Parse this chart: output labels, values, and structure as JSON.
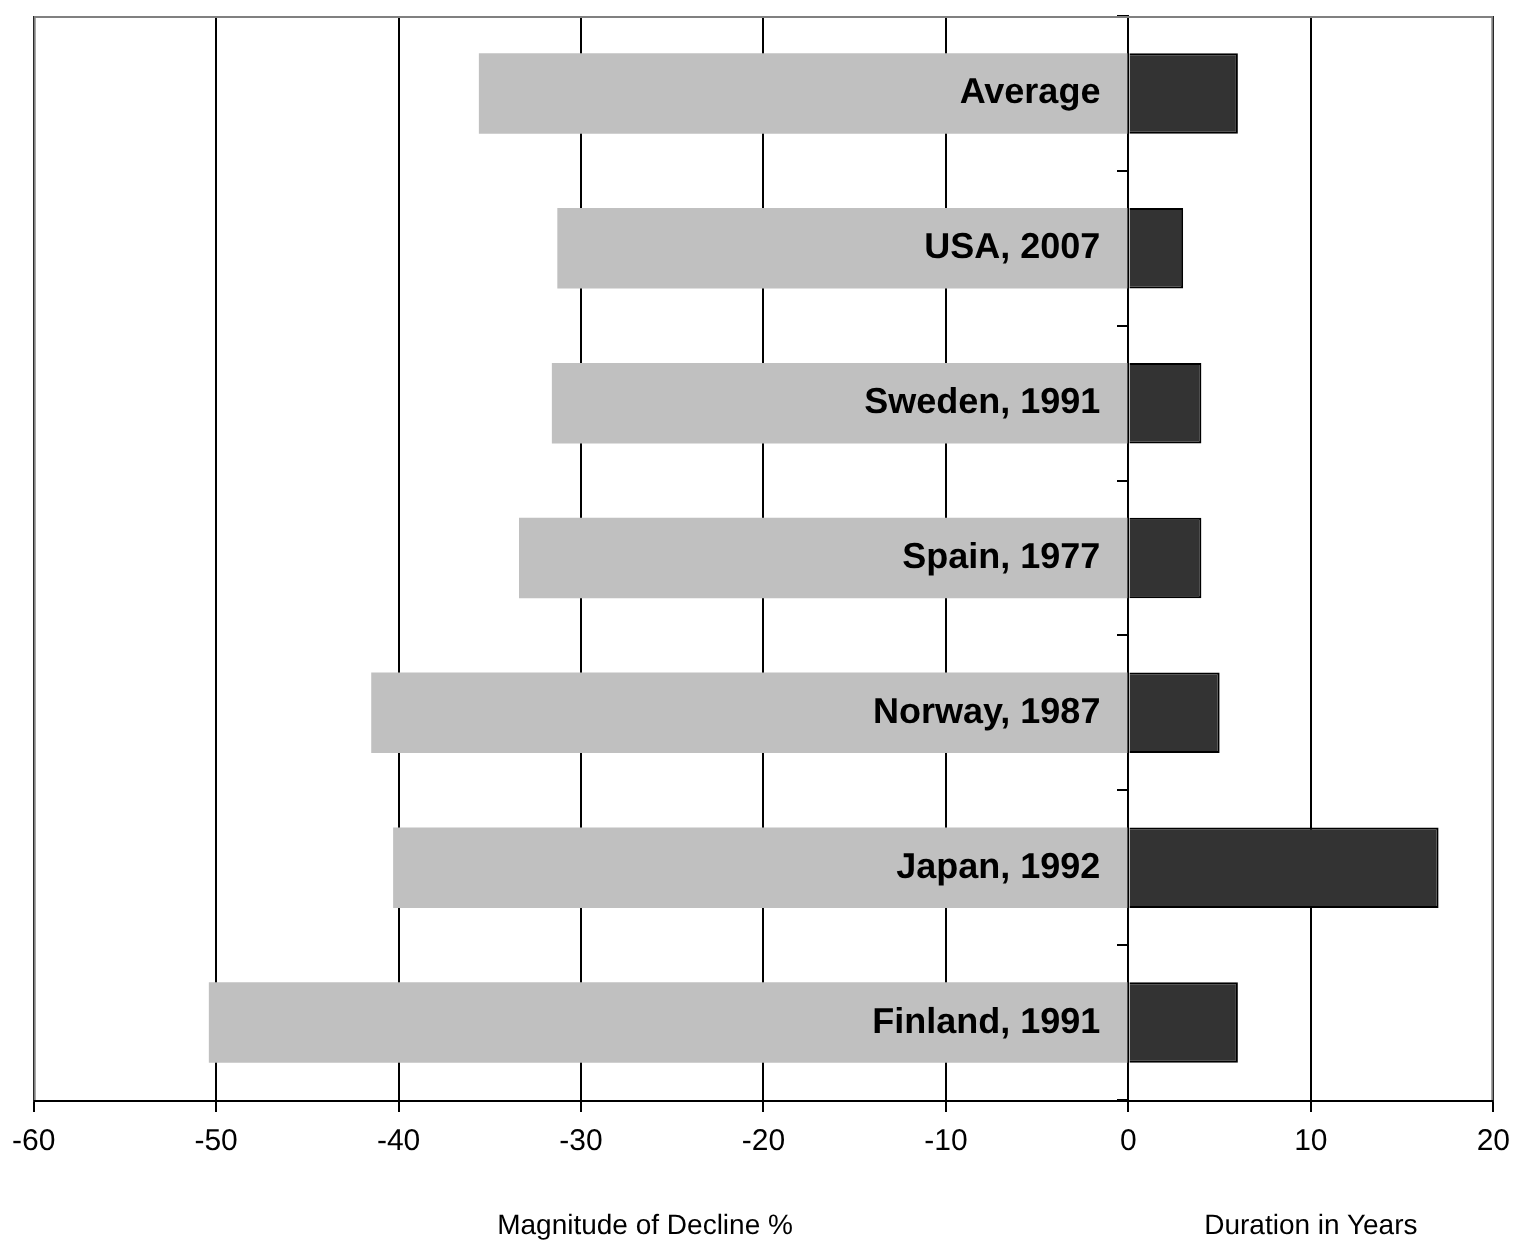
{
  "chart_data": {
    "type": "bar",
    "orientation": "horizontal",
    "stacked": true,
    "categories": [
      "Average",
      "USA, 2007",
      "Sweden, 1991",
      "Spain, 1977",
      "Norway, 1987",
      "Japan, 1992",
      "Finland, 1991"
    ],
    "series": [
      {
        "color": "#c0c0c0",
        "values": [
          -35.6,
          -31.3,
          -31.6,
          -33.4,
          -41.5,
          -40.3,
          -50.4
        ]
      },
      {
        "color": "#333333",
        "values": [
          6,
          3,
          4,
          4,
          5,
          17,
          6
        ]
      }
    ],
    "xlim": [
      -60,
      20
    ],
    "xticks": [
      -60,
      -50,
      -40,
      -30,
      -20,
      -10,
      0,
      10,
      20
    ],
    "xlabel": "Magnitude of Decline %",
    "annotations": [
      "Duration in Years"
    ],
    "grid": "x",
    "legend": false
  }
}
